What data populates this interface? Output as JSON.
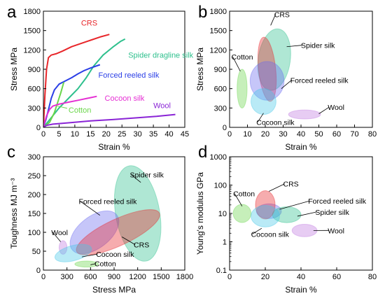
{
  "chart_data": [
    {
      "panel": "a",
      "type": "line",
      "xlabel": "Strain %",
      "ylabel": "Stress MPa",
      "xlim": [
        0,
        45
      ],
      "ylim": [
        0,
        1800
      ],
      "xticks": [
        0,
        5,
        10,
        15,
        20,
        25,
        30,
        35,
        40,
        45
      ],
      "yticks": [
        0,
        300,
        600,
        900,
        1200,
        1500,
        1800
      ],
      "series": [
        {
          "name": "CRS",
          "color": "#e8262a",
          "label_pos": [
            12,
            1580
          ],
          "points": [
            [
              0,
              0
            ],
            [
              0.5,
              500
            ],
            [
              1,
              900
            ],
            [
              1.6,
              1080
            ],
            [
              2.5,
              1120
            ],
            [
              4,
              1140
            ],
            [
              6,
              1180
            ],
            [
              9,
              1250
            ],
            [
              12,
              1300
            ],
            [
              15,
              1350
            ],
            [
              18,
              1400
            ],
            [
              21,
              1440
            ]
          ]
        },
        {
          "name": "Spider dragline silk",
          "color": "#2ec08d",
          "label_pos": [
            27,
            1080
          ],
          "points": [
            [
              0,
              0
            ],
            [
              1,
              60
            ],
            [
              3,
              180
            ],
            [
              5,
              300
            ],
            [
              8,
              450
            ],
            [
              11,
              600
            ],
            [
              13.5,
              760
            ],
            [
              16,
              950
            ],
            [
              19,
              1120
            ],
            [
              22,
              1240
            ],
            [
              24.5,
              1330
            ],
            [
              26,
              1370
            ]
          ]
        },
        {
          "name": "Forced reeled silk",
          "color": "#2b3fe6",
          "label_pos": [
            17.5,
            770
          ],
          "points": [
            [
              0,
              0
            ],
            [
              0.8,
              120
            ],
            [
              1.5,
              250
            ],
            [
              2.5,
              450
            ],
            [
              3.5,
              580
            ],
            [
              5,
              670
            ],
            [
              7,
              720
            ],
            [
              9,
              770
            ],
            [
              11,
              830
            ],
            [
              13,
              880
            ],
            [
              15,
              920
            ],
            [
              18,
              970
            ]
          ]
        },
        {
          "name": "Cotton",
          "color": "#6ad64a",
          "label_pos": [
            8,
            230
          ],
          "points": [
            [
              0,
              0
            ],
            [
              2,
              80
            ],
            [
              3.5,
              230
            ],
            [
              4.5,
              380
            ],
            [
              5.5,
              530
            ],
            [
              6.5,
              700
            ]
          ]
        },
        {
          "name": "Cocoon silk",
          "color": "#e52fd3",
          "label_pos": [
            19.5,
            410
          ],
          "points": [
            [
              0,
              0
            ],
            [
              1,
              180
            ],
            [
              2,
              280
            ],
            [
              3,
              330
            ],
            [
              5,
              360
            ],
            [
              8,
              390
            ],
            [
              11,
              420
            ],
            [
              14,
              450
            ],
            [
              17,
              480
            ]
          ]
        },
        {
          "name": "Wool",
          "color": "#8a24d6",
          "label_pos": [
            35,
            300
          ],
          "points": [
            [
              0,
              0
            ],
            [
              1,
              30
            ],
            [
              3,
              50
            ],
            [
              8,
              70
            ],
            [
              15,
              100
            ],
            [
              22,
              120
            ],
            [
              30,
              150
            ],
            [
              36,
              170
            ],
            [
              42,
              200
            ]
          ]
        }
      ]
    },
    {
      "panel": "b",
      "type": "scatter",
      "xlabel": "Strain %",
      "ylabel": "Stress MPa",
      "xlim": [
        0,
        80
      ],
      "ylim": [
        0,
        1800
      ],
      "xticks": [
        0,
        10,
        20,
        30,
        40,
        50,
        60,
        70,
        80
      ],
      "yticks": [
        0,
        300,
        600,
        900,
        1200,
        1500,
        1800
      ],
      "regions": [
        {
          "name": "Spider silk",
          "color": "#2ec08d",
          "cx": 25,
          "cy": 1050,
          "rx": 9,
          "ry": 480,
          "rot": -8,
          "label": [
            40,
            1230
          ],
          "tip": [
            32,
            1250
          ]
        },
        {
          "name": "Cotton",
          "color": "#6ad64a",
          "cx": 7,
          "cy": 600,
          "rx": 2.8,
          "ry": 300,
          "rot": 0,
          "label": [
            1,
            1050
          ],
          "tip": [
            6,
            870
          ]
        },
        {
          "name": "CRS",
          "color": "#e8262a",
          "cx": 21,
          "cy": 900,
          "rx": 4.8,
          "ry": 500,
          "rot": 6,
          "label": [
            25,
            1710
          ],
          "tip": [
            23,
            1580
          ]
        },
        {
          "name": "Forced reeled silk",
          "color": "#6a6af0",
          "cx": 21,
          "cy": 720,
          "rx": 9.5,
          "ry": 300,
          "rot": 0,
          "label": [
            34,
            690
          ],
          "tip": [
            29,
            600
          ]
        },
        {
          "name": "Cocoon silk",
          "color": "#46c8e8",
          "cx": 19,
          "cy": 400,
          "rx": 7,
          "ry": 200,
          "rot": 8,
          "label": [
            15,
            40
          ],
          "tip": [
            19,
            220
          ]
        },
        {
          "name": "Wool",
          "color": "#c07ae0",
          "cx": 42,
          "cy": 200,
          "rx": 9,
          "ry": 70,
          "rot": 0,
          "label": [
            55,
            270
          ],
          "tip": [
            50,
            210
          ]
        }
      ]
    },
    {
      "panel": "c",
      "type": "scatter",
      "xlabel": "Stress MPa",
      "ylabel": "Toughness MJ m⁻³",
      "xlim": [
        0,
        1800
      ],
      "ylim": [
        0,
        300
      ],
      "xticks": [
        0,
        300,
        600,
        900,
        1200,
        1500,
        1800
      ],
      "yticks": [
        0,
        50,
        100,
        150,
        200,
        250,
        300
      ],
      "regions": [
        {
          "name": "Spider silk",
          "color": "#2ec08d",
          "cx": 1200,
          "cy": 150,
          "rx": 280,
          "ry": 128,
          "rot": 10,
          "label": [
            1100,
            245
          ],
          "tip": [
            1240,
            232
          ]
        },
        {
          "name": "Forced reeled silk",
          "color": "#6a6af0",
          "cx": 650,
          "cy": 100,
          "rx": 360,
          "ry": 42,
          "rot": 38,
          "label": [
            450,
            175
          ],
          "tip": [
            720,
            145
          ]
        },
        {
          "name": "CRS",
          "color": "#e8262a",
          "cx": 950,
          "cy": 100,
          "rx": 580,
          "ry": 35,
          "rot": 25,
          "label": [
            1150,
            60
          ],
          "tip": [
            1000,
            88
          ]
        },
        {
          "name": "Wool",
          "color": "#c07ae0",
          "cx": 250,
          "cy": 60,
          "rx": 50,
          "ry": 18,
          "rot": 0,
          "label": [
            100,
            93
          ],
          "tip": [
            220,
            75
          ]
        },
        {
          "name": "Cocoon silk",
          "color": "#46c8e8",
          "cx": 380,
          "cy": 45,
          "rx": 240,
          "ry": 20,
          "rot": 15,
          "label": [
            670,
            35
          ],
          "tip": [
            490,
            35
          ]
        },
        {
          "name": "Cotton",
          "color": "#6ad64a",
          "cx": 550,
          "cy": 16,
          "rx": 150,
          "ry": 8,
          "rot": 0,
          "label": [
            650,
            10
          ],
          "tip": [
            600,
            14
          ]
        }
      ]
    },
    {
      "panel": "d",
      "type": "scatter",
      "xlabel": "Strain %",
      "ylabel": "Young's modulus GPa",
      "xlim": [
        0,
        80
      ],
      "ylim": [
        0.1,
        1000
      ],
      "yscale": "log",
      "xticks": [
        0,
        20,
        40,
        60,
        80
      ],
      "yticks": [
        0.1,
        1,
        10,
        100,
        1000
      ],
      "regions": [
        {
          "name": "Cotton",
          "color": "#6ad64a",
          "cx": 7,
          "cy": 10,
          "rx": 5,
          "ry": 0.32,
          "rot": 0,
          "label": [
            2,
            40
          ],
          "tip": [
            7,
            18
          ]
        },
        {
          "name": "Forced reeled silk",
          "color": "#6a6af0",
          "cx": 22,
          "cy": 12,
          "rx": 7,
          "ry": 0.26,
          "rot": 0,
          "label": [
            44,
            22
          ],
          "tip": [
            28,
            14
          ]
        },
        {
          "name": "Spider silk",
          "color": "#2ec08d",
          "cx": 32,
          "cy": 9,
          "rx": 8,
          "ry": 0.28,
          "rot": 0,
          "label": [
            48,
            9
          ],
          "tip": [
            38,
            8
          ]
        },
        {
          "name": "CRS",
          "color": "#e8262a",
          "cx": 20,
          "cy": 20,
          "rx": 5.5,
          "ry": 0.5,
          "rot": 0,
          "label": [
            30,
            88
          ],
          "tip": [
            22,
            60
          ]
        },
        {
          "name": "Cocoon silk",
          "color": "#46c8e8",
          "cx": 20,
          "cy": 8,
          "rx": 8,
          "ry": 0.38,
          "rot": 0,
          "label": [
            12,
            1.5
          ],
          "tip": [
            18,
            3
          ]
        },
        {
          "name": "Wool",
          "color": "#c07ae0",
          "cx": 42,
          "cy": 2.5,
          "rx": 7,
          "ry": 0.22,
          "rot": 0,
          "label": [
            55,
            2
          ],
          "tip": [
            47,
            2.5
          ]
        }
      ]
    }
  ]
}
